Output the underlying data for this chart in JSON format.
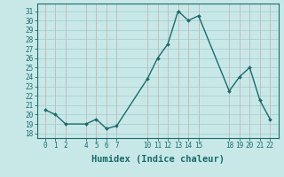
{
  "x": [
    0,
    1,
    2,
    4,
    5,
    6,
    7,
    10,
    11,
    12,
    13,
    14,
    15,
    18,
    19,
    20,
    21,
    22
  ],
  "y": [
    20.5,
    20.0,
    19.0,
    19.0,
    19.5,
    18.5,
    18.8,
    23.8,
    26.0,
    27.5,
    31.0,
    30.0,
    30.5,
    22.5,
    24.0,
    25.0,
    21.5,
    19.5
  ],
  "line_color": "#1a6b6b",
  "marker": "D",
  "marker_size": 2.0,
  "bg_color": "#c8e8e8",
  "grid_color": "#add8d8",
  "xlabel": "Humidex (Indice chaleur)",
  "xlim": [
    -0.8,
    22.8
  ],
  "ylim": [
    17.5,
    31.8
  ],
  "xticks": [
    0,
    1,
    2,
    4,
    5,
    6,
    7,
    10,
    11,
    12,
    13,
    14,
    15,
    18,
    19,
    20,
    21,
    22
  ],
  "yticks": [
    18,
    19,
    20,
    21,
    22,
    23,
    24,
    25,
    26,
    27,
    28,
    29,
    30,
    31
  ],
  "tick_fontsize": 5.5,
  "xlabel_fontsize": 7.5,
  "line_width": 1.0
}
